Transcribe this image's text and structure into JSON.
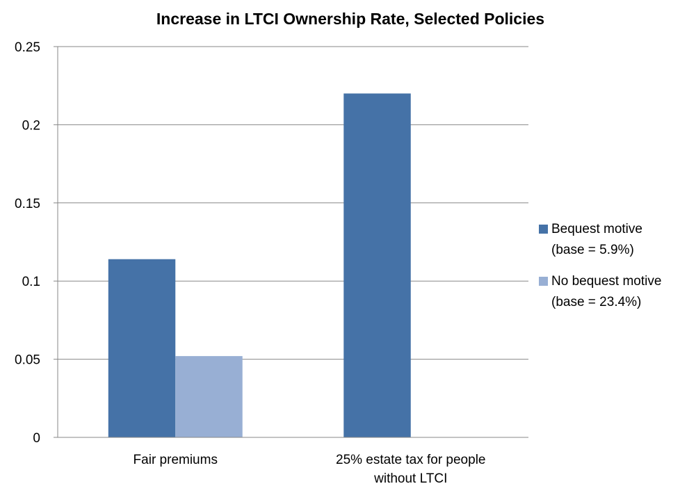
{
  "chart_data": {
    "type": "bar",
    "title": "Increase in LTCI Ownership Rate, Selected Policies",
    "xlabel": "",
    "ylabel": "",
    "categories": [
      [
        "Fair premiums"
      ],
      [
        "25% estate tax for people",
        "without LTCI"
      ]
    ],
    "series": [
      {
        "name": [
          "Bequest motive",
          "(base = 5.9%)"
        ],
        "values": [
          0.114,
          0.22
        ],
        "color": "#4572A7"
      },
      {
        "name": [
          "No bequest motive",
          "(base = 23.4%)"
        ],
        "values": [
          0.052,
          null
        ],
        "color": "#98AFD4"
      }
    ],
    "ylim": [
      0,
      0.25
    ],
    "yticks": [
      "0",
      "0.05",
      "0.1",
      "0.15",
      "0.2",
      "0.25"
    ],
    "grid": true,
    "legend_position": "right"
  }
}
